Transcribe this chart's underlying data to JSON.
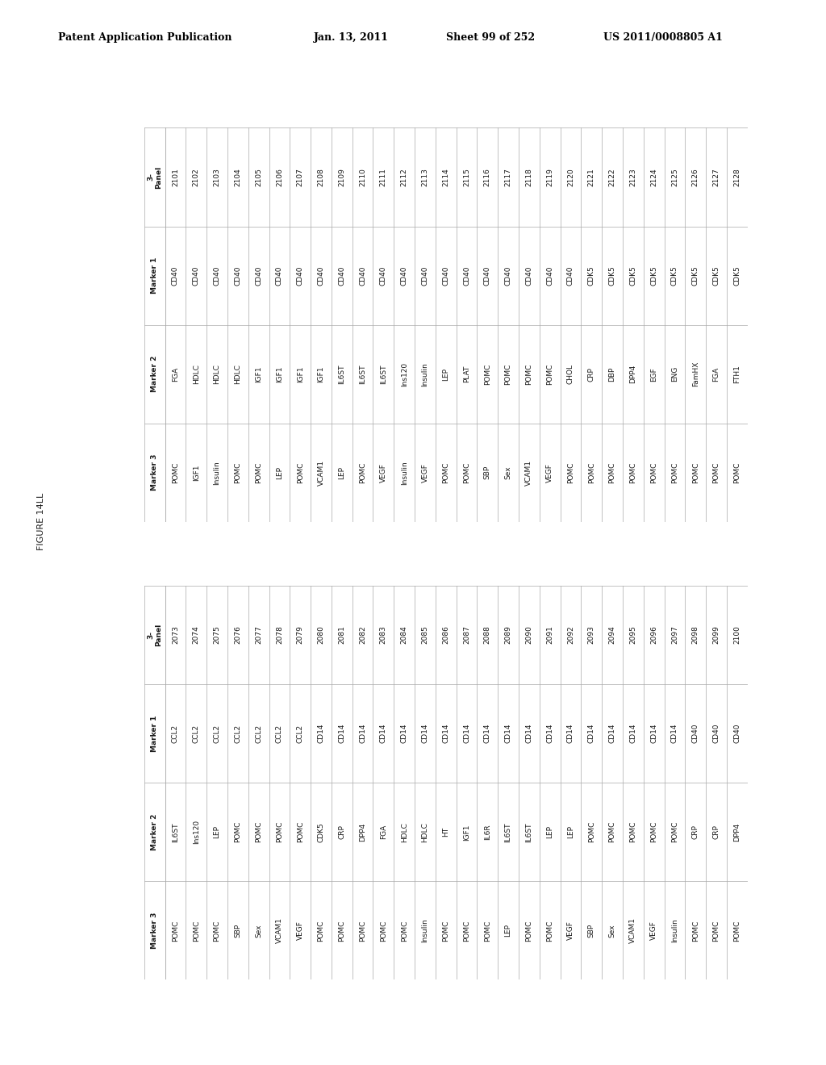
{
  "header_line1": "Patent Application Publication",
  "header_date": "Jan. 13, 2011",
  "header_sheet": "Sheet 99 of 252",
  "header_patent": "US 2011/0008805 A1",
  "figure_label": "FIGURE 14LL",
  "table1_headers": [
    "3-\nPanel",
    "Marker 1",
    "Marker 2",
    "Marker 3"
  ],
  "table1_data": [
    [
      "2101",
      "CD40",
      "FGA",
      "POMC"
    ],
    [
      "2102",
      "CD40",
      "HDLC",
      "IGF1"
    ],
    [
      "2103",
      "CD40",
      "HDLC",
      "Insulin"
    ],
    [
      "2104",
      "CD40",
      "HDLC",
      "POMC"
    ],
    [
      "2105",
      "CD40",
      "IGF1",
      "POMC"
    ],
    [
      "2106",
      "CD40",
      "IGF1",
      "LEP"
    ],
    [
      "2107",
      "CD40",
      "IGF1",
      "POMC"
    ],
    [
      "2108",
      "CD40",
      "IGF1",
      "VCAM1"
    ],
    [
      "2109",
      "CD40",
      "IL6ST",
      "LEP"
    ],
    [
      "2110",
      "CD40",
      "IL6ST",
      "POMC"
    ],
    [
      "2111",
      "CD40",
      "IL6ST",
      "VEGF"
    ],
    [
      "2112",
      "CD40",
      "Ins120",
      "Insulin"
    ],
    [
      "2113",
      "CD40",
      "Insulin",
      "VEGF"
    ],
    [
      "2114",
      "CD40",
      "LEP",
      "POMC"
    ],
    [
      "2115",
      "CD40",
      "PLAT",
      "POMC"
    ],
    [
      "2116",
      "CD40",
      "POMC",
      "SBP"
    ],
    [
      "2117",
      "CD40",
      "POMC",
      "Sex"
    ],
    [
      "2118",
      "CD40",
      "POMC",
      "VCAM1"
    ],
    [
      "2119",
      "CD40",
      "POMC",
      "VEGF"
    ],
    [
      "2120",
      "CD40",
      "CHOL",
      "POMC"
    ],
    [
      "2121",
      "CDK5",
      "CRP",
      "POMC"
    ],
    [
      "2122",
      "CDK5",
      "DBP",
      "POMC"
    ],
    [
      "2123",
      "CDK5",
      "DPP4",
      "POMC"
    ],
    [
      "2124",
      "CDK5",
      "EGF",
      "POMC"
    ],
    [
      "2125",
      "CDK5",
      "ENG",
      "POMC"
    ],
    [
      "2126",
      "CDK5",
      "FamHX",
      "POMC"
    ],
    [
      "2127",
      "CDK5",
      "FGA",
      "POMC"
    ],
    [
      "2128",
      "CDK5",
      "FTH1",
      "POMC"
    ]
  ],
  "table2_headers": [
    "3-\nPanel",
    "Marker 1",
    "Marker 2",
    "Marker 3"
  ],
  "table2_data": [
    [
      "2073",
      "CCL2",
      "IL6ST",
      "POMC"
    ],
    [
      "2074",
      "CCL2",
      "Ins120",
      "POMC"
    ],
    [
      "2075",
      "CCL2",
      "LEP",
      "POMC"
    ],
    [
      "2076",
      "CCL2",
      "POMC",
      "SBP"
    ],
    [
      "2077",
      "CCL2",
      "POMC",
      "Sex"
    ],
    [
      "2078",
      "CCL2",
      "POMC",
      "VCAM1"
    ],
    [
      "2079",
      "CCL2",
      "POMC",
      "VEGF"
    ],
    [
      "2080",
      "CD14",
      "CDK5",
      "POMC"
    ],
    [
      "2081",
      "CD14",
      "CRP",
      "POMC"
    ],
    [
      "2082",
      "CD14",
      "DPP4",
      "POMC"
    ],
    [
      "2083",
      "CD14",
      "FGA",
      "POMC"
    ],
    [
      "2084",
      "CD14",
      "HDLC",
      "POMC"
    ],
    [
      "2085",
      "CD14",
      "HDLC",
      "Insulin"
    ],
    [
      "2086",
      "CD14",
      "HT",
      "POMC"
    ],
    [
      "2087",
      "CD14",
      "IGF1",
      "POMC"
    ],
    [
      "2088",
      "CD14",
      "IL6R",
      "POMC"
    ],
    [
      "2089",
      "CD14",
      "IL6ST",
      "LEP"
    ],
    [
      "2090",
      "CD14",
      "IL6ST",
      "POMC"
    ],
    [
      "2091",
      "CD14",
      "LEP",
      "POMC"
    ],
    [
      "2092",
      "CD14",
      "LEP",
      "VEGF"
    ],
    [
      "2093",
      "CD14",
      "POMC",
      "SBP"
    ],
    [
      "2094",
      "CD14",
      "POMC",
      "Sex"
    ],
    [
      "2095",
      "CD14",
      "POMC",
      "VCAM1"
    ],
    [
      "2096",
      "CD14",
      "POMC",
      "VEGF"
    ],
    [
      "2097",
      "CD14",
      "POMC",
      "Insulin"
    ],
    [
      "2098",
      "CD40",
      "CRP",
      "POMC"
    ],
    [
      "2099",
      "CD40",
      "CRP",
      "POMC"
    ],
    [
      "2100",
      "CD40",
      "DPP4",
      "POMC"
    ]
  ],
  "bg_color": "#ffffff",
  "text_color": "#1a1a1a",
  "table_line_color": "#aaaaaa",
  "font_size_header": 6.5,
  "font_size_data": 6.5,
  "font_size_page_header": 9.0
}
